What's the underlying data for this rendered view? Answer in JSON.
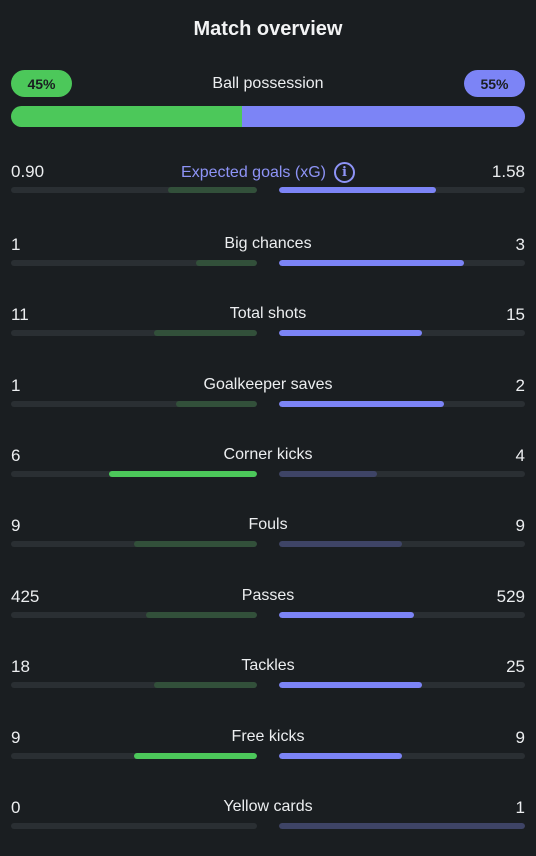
{
  "title": "Match overview",
  "colors": {
    "home_strong": "#4cc85a",
    "home_dim": "#32503a",
    "away_strong": "#7c84f6",
    "away_dim": "#3e4466",
    "track": "#2a2f33"
  },
  "possession": {
    "label": "Ball possession",
    "home": "45%",
    "away": "55%",
    "home_pct": 45,
    "away_pct": 55
  },
  "stats": [
    {
      "key": "xg",
      "label": "Expected goals (xG)",
      "home": "0.90",
      "away": "1.58",
      "home_frac": 0.36,
      "away_frac": 0.64,
      "home_style": "dim",
      "away_style": "strong",
      "info": true
    },
    {
      "key": "big-chances",
      "label": "Big chances",
      "home": "1",
      "away": "3",
      "home_frac": 0.25,
      "away_frac": 0.75,
      "home_style": "dim",
      "away_style": "strong"
    },
    {
      "key": "total-shots",
      "label": "Total shots",
      "home": "11",
      "away": "15",
      "home_frac": 0.42,
      "away_frac": 0.58,
      "home_style": "dim",
      "away_style": "strong"
    },
    {
      "key": "goalkeeper-saves",
      "label": "Goalkeeper saves",
      "home": "1",
      "away": "2",
      "home_frac": 0.33,
      "away_frac": 0.67,
      "home_style": "dim",
      "away_style": "strong"
    },
    {
      "key": "corner-kicks",
      "label": "Corner kicks",
      "home": "6",
      "away": "4",
      "home_frac": 0.6,
      "away_frac": 0.4,
      "home_style": "strong",
      "away_style": "dim"
    },
    {
      "key": "fouls",
      "label": "Fouls",
      "home": "9",
      "away": "9",
      "home_frac": 0.5,
      "away_frac": 0.5,
      "home_style": "dim",
      "away_style": "dim"
    },
    {
      "key": "passes",
      "label": "Passes",
      "home": "425",
      "away": "529",
      "home_frac": 0.45,
      "away_frac": 0.55,
      "home_style": "dim",
      "away_style": "strong"
    },
    {
      "key": "tackles",
      "label": "Tackles",
      "home": "18",
      "away": "25",
      "home_frac": 0.42,
      "away_frac": 0.58,
      "home_style": "dim",
      "away_style": "strong"
    },
    {
      "key": "free-kicks",
      "label": "Free kicks",
      "home": "9",
      "away": "9",
      "home_frac": 0.5,
      "away_frac": 0.5,
      "home_style": "strong",
      "away_style": "strong"
    },
    {
      "key": "yellow-cards",
      "label": "Yellow cards",
      "home": "0",
      "away": "1",
      "home_frac": 0.0,
      "away_frac": 1.0,
      "home_style": "dim",
      "away_style": "dim"
    }
  ]
}
